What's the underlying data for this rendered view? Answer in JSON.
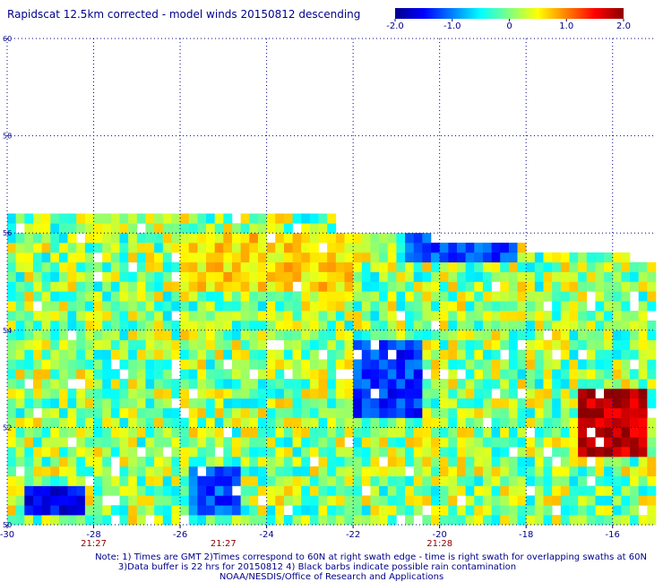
{
  "title": "Rapidscat 12.5km corrected - model winds 20150812 descending",
  "colorbar": {
    "tick_labels": [
      "-2.0",
      "-1.0",
      "0",
      "1.0",
      "2.0"
    ],
    "tick_values": [
      -2.0,
      -1.0,
      0,
      1.0,
      2.0
    ],
    "range": [
      -2.0,
      2.0
    ],
    "colors": [
      "#00008b",
      "#0000ff",
      "#0080ff",
      "#00ffff",
      "#80ff80",
      "#ffff00",
      "#ff8000",
      "#ff0000",
      "#8b0000"
    ]
  },
  "chart_data": {
    "type": "heatmap",
    "title": "Rapidscat 12.5km corrected - model winds 20150812 descending",
    "xlim": [
      -30,
      -15
    ],
    "ylim": [
      50,
      60
    ],
    "x_ticks": [
      -30,
      -28,
      -26,
      -24,
      -22,
      -20,
      -18,
      -16
    ],
    "x_tick_labels": [
      "-30",
      "-28",
      "-26",
      "-24",
      "-22",
      "-20",
      "-18",
      "-16"
    ],
    "y_ticks": [
      50,
      52,
      54,
      56,
      58,
      60
    ],
    "y_tick_labels": [
      "50",
      "52",
      "54",
      "56",
      "58",
      "60"
    ],
    "grid": true,
    "swath_times": [
      {
        "lon": -28,
        "label": "21:27"
      },
      {
        "lon": -25,
        "label": "21:27"
      },
      {
        "lon": -20,
        "label": "21:28"
      }
    ],
    "coverage_top_lat": [
      {
        "lon_range": [
          -30,
          -22.5
        ],
        "lat": 56.3
      },
      {
        "lon_range": [
          -22.5,
          -20.2
        ],
        "lat": 56.0
      },
      {
        "lon_range": [
          -20.2,
          -18.1
        ],
        "lat": 55.8
      },
      {
        "lon_range": [
          -18.1,
          -15.6
        ],
        "lat": 55.6
      },
      {
        "lon_range": [
          -15.6,
          -15
        ],
        "lat": 55.3
      }
    ],
    "value_regions": [
      {
        "name": "strong positive",
        "lon": [
          -16.8,
          -15.2
        ],
        "lat": [
          51.4,
          52.9
        ],
        "value": 1.8
      },
      {
        "name": "negative band",
        "lon": [
          -22.0,
          -20.5
        ],
        "lat": [
          52.2,
          53.9
        ],
        "value": -1.3
      },
      {
        "name": "negative north",
        "lon": [
          -20.8,
          -18.2
        ],
        "lat": [
          55.4,
          56.0
        ],
        "value": -1.2
      },
      {
        "name": "negative southwest",
        "lon": [
          -29.5,
          -28.3
        ],
        "lat": [
          50.3,
          50.9
        ],
        "value": -1.5
      },
      {
        "name": "negative south-central",
        "lon": [
          -25.9,
          -24.6
        ],
        "lat": [
          50.3,
          51.2
        ],
        "value": -1.2
      },
      {
        "name": "positive north-central",
        "lon": [
          -26.0,
          -22.0
        ],
        "lat": [
          54.8,
          56.0
        ],
        "value": 0.6
      }
    ]
  },
  "notes": [
    "Note: 1) Times are GMT 2)Times correspond to 60N at right swath edge - time is right swath for overlapping swaths at 60N",
    "3)Data buffer is 22 hrs for 20150812 4) Black barbs indicate possible rain contamination",
    "NOAA/NESDIS/Office of Research and Applications"
  ]
}
